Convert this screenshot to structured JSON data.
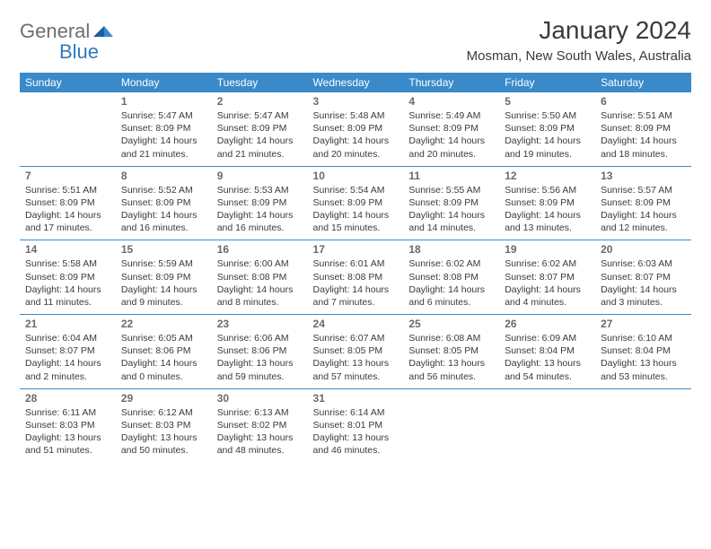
{
  "brand": {
    "part1": "General",
    "part2": "Blue",
    "accent": "#2f7bbf",
    "text_color": "#6e6e6e"
  },
  "title": "January 2024",
  "location": "Mosman, New South Wales, Australia",
  "colors": {
    "header_bg": "#3a8ac9",
    "header_text": "#ffffff",
    "border": "#3a8ac9",
    "body_text": "#3a3a3a",
    "daynum": "#6a6a6a"
  },
  "day_headers": [
    "Sunday",
    "Monday",
    "Tuesday",
    "Wednesday",
    "Thursday",
    "Friday",
    "Saturday"
  ],
  "weeks": [
    [
      null,
      {
        "n": "1",
        "sr": "Sunrise: 5:47 AM",
        "ss": "Sunset: 8:09 PM",
        "d1": "Daylight: 14 hours",
        "d2": "and 21 minutes."
      },
      {
        "n": "2",
        "sr": "Sunrise: 5:47 AM",
        "ss": "Sunset: 8:09 PM",
        "d1": "Daylight: 14 hours",
        "d2": "and 21 minutes."
      },
      {
        "n": "3",
        "sr": "Sunrise: 5:48 AM",
        "ss": "Sunset: 8:09 PM",
        "d1": "Daylight: 14 hours",
        "d2": "and 20 minutes."
      },
      {
        "n": "4",
        "sr": "Sunrise: 5:49 AM",
        "ss": "Sunset: 8:09 PM",
        "d1": "Daylight: 14 hours",
        "d2": "and 20 minutes."
      },
      {
        "n": "5",
        "sr": "Sunrise: 5:50 AM",
        "ss": "Sunset: 8:09 PM",
        "d1": "Daylight: 14 hours",
        "d2": "and 19 minutes."
      },
      {
        "n": "6",
        "sr": "Sunrise: 5:51 AM",
        "ss": "Sunset: 8:09 PM",
        "d1": "Daylight: 14 hours",
        "d2": "and 18 minutes."
      }
    ],
    [
      {
        "n": "7",
        "sr": "Sunrise: 5:51 AM",
        "ss": "Sunset: 8:09 PM",
        "d1": "Daylight: 14 hours",
        "d2": "and 17 minutes."
      },
      {
        "n": "8",
        "sr": "Sunrise: 5:52 AM",
        "ss": "Sunset: 8:09 PM",
        "d1": "Daylight: 14 hours",
        "d2": "and 16 minutes."
      },
      {
        "n": "9",
        "sr": "Sunrise: 5:53 AM",
        "ss": "Sunset: 8:09 PM",
        "d1": "Daylight: 14 hours",
        "d2": "and 16 minutes."
      },
      {
        "n": "10",
        "sr": "Sunrise: 5:54 AM",
        "ss": "Sunset: 8:09 PM",
        "d1": "Daylight: 14 hours",
        "d2": "and 15 minutes."
      },
      {
        "n": "11",
        "sr": "Sunrise: 5:55 AM",
        "ss": "Sunset: 8:09 PM",
        "d1": "Daylight: 14 hours",
        "d2": "and 14 minutes."
      },
      {
        "n": "12",
        "sr": "Sunrise: 5:56 AM",
        "ss": "Sunset: 8:09 PM",
        "d1": "Daylight: 14 hours",
        "d2": "and 13 minutes."
      },
      {
        "n": "13",
        "sr": "Sunrise: 5:57 AM",
        "ss": "Sunset: 8:09 PM",
        "d1": "Daylight: 14 hours",
        "d2": "and 12 minutes."
      }
    ],
    [
      {
        "n": "14",
        "sr": "Sunrise: 5:58 AM",
        "ss": "Sunset: 8:09 PM",
        "d1": "Daylight: 14 hours",
        "d2": "and 11 minutes."
      },
      {
        "n": "15",
        "sr": "Sunrise: 5:59 AM",
        "ss": "Sunset: 8:09 PM",
        "d1": "Daylight: 14 hours",
        "d2": "and 9 minutes."
      },
      {
        "n": "16",
        "sr": "Sunrise: 6:00 AM",
        "ss": "Sunset: 8:08 PM",
        "d1": "Daylight: 14 hours",
        "d2": "and 8 minutes."
      },
      {
        "n": "17",
        "sr": "Sunrise: 6:01 AM",
        "ss": "Sunset: 8:08 PM",
        "d1": "Daylight: 14 hours",
        "d2": "and 7 minutes."
      },
      {
        "n": "18",
        "sr": "Sunrise: 6:02 AM",
        "ss": "Sunset: 8:08 PM",
        "d1": "Daylight: 14 hours",
        "d2": "and 6 minutes."
      },
      {
        "n": "19",
        "sr": "Sunrise: 6:02 AM",
        "ss": "Sunset: 8:07 PM",
        "d1": "Daylight: 14 hours",
        "d2": "and 4 minutes."
      },
      {
        "n": "20",
        "sr": "Sunrise: 6:03 AM",
        "ss": "Sunset: 8:07 PM",
        "d1": "Daylight: 14 hours",
        "d2": "and 3 minutes."
      }
    ],
    [
      {
        "n": "21",
        "sr": "Sunrise: 6:04 AM",
        "ss": "Sunset: 8:07 PM",
        "d1": "Daylight: 14 hours",
        "d2": "and 2 minutes."
      },
      {
        "n": "22",
        "sr": "Sunrise: 6:05 AM",
        "ss": "Sunset: 8:06 PM",
        "d1": "Daylight: 14 hours",
        "d2": "and 0 minutes."
      },
      {
        "n": "23",
        "sr": "Sunrise: 6:06 AM",
        "ss": "Sunset: 8:06 PM",
        "d1": "Daylight: 13 hours",
        "d2": "and 59 minutes."
      },
      {
        "n": "24",
        "sr": "Sunrise: 6:07 AM",
        "ss": "Sunset: 8:05 PM",
        "d1": "Daylight: 13 hours",
        "d2": "and 57 minutes."
      },
      {
        "n": "25",
        "sr": "Sunrise: 6:08 AM",
        "ss": "Sunset: 8:05 PM",
        "d1": "Daylight: 13 hours",
        "d2": "and 56 minutes."
      },
      {
        "n": "26",
        "sr": "Sunrise: 6:09 AM",
        "ss": "Sunset: 8:04 PM",
        "d1": "Daylight: 13 hours",
        "d2": "and 54 minutes."
      },
      {
        "n": "27",
        "sr": "Sunrise: 6:10 AM",
        "ss": "Sunset: 8:04 PM",
        "d1": "Daylight: 13 hours",
        "d2": "and 53 minutes."
      }
    ],
    [
      {
        "n": "28",
        "sr": "Sunrise: 6:11 AM",
        "ss": "Sunset: 8:03 PM",
        "d1": "Daylight: 13 hours",
        "d2": "and 51 minutes."
      },
      {
        "n": "29",
        "sr": "Sunrise: 6:12 AM",
        "ss": "Sunset: 8:03 PM",
        "d1": "Daylight: 13 hours",
        "d2": "and 50 minutes."
      },
      {
        "n": "30",
        "sr": "Sunrise: 6:13 AM",
        "ss": "Sunset: 8:02 PM",
        "d1": "Daylight: 13 hours",
        "d2": "and 48 minutes."
      },
      {
        "n": "31",
        "sr": "Sunrise: 6:14 AM",
        "ss": "Sunset: 8:01 PM",
        "d1": "Daylight: 13 hours",
        "d2": "and 46 minutes."
      },
      null,
      null,
      null
    ]
  ]
}
